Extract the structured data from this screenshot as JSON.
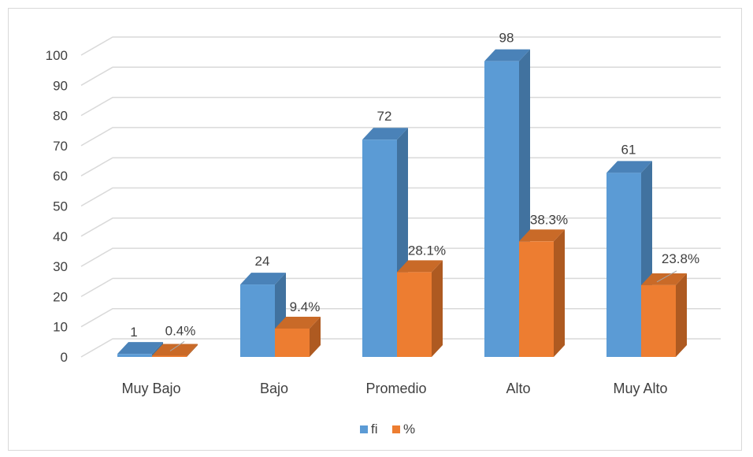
{
  "chart_data": {
    "type": "bar",
    "categories": [
      "Muy Bajo",
      "Bajo",
      "Promedio",
      "Alto",
      "Muy Alto"
    ],
    "series": [
      {
        "name": "fi",
        "values": [
          1,
          24,
          72,
          98,
          61
        ],
        "labels": [
          "1",
          "24",
          "72",
          "98",
          "61"
        ],
        "color": "#5b9bd5",
        "side_color": "#41729f",
        "top_color": "#4a82b8"
      },
      {
        "name": "%",
        "values": [
          0.4,
          9.4,
          28.1,
          38.3,
          23.8
        ],
        "labels": [
          "0.4%",
          "9.4%",
          "28.1%",
          "38.3%",
          "23.8%"
        ],
        "color": "#ed7d31",
        "side_color": "#ae5a21",
        "top_color": "#c96a28"
      }
    ],
    "yticks": [
      "0",
      "10",
      "20",
      "30",
      "40",
      "50",
      "60",
      "70",
      "80",
      "90",
      "100"
    ],
    "ylim": [
      0,
      100
    ],
    "grid": true,
    "three_d": true,
    "legend_position": "bottom"
  }
}
